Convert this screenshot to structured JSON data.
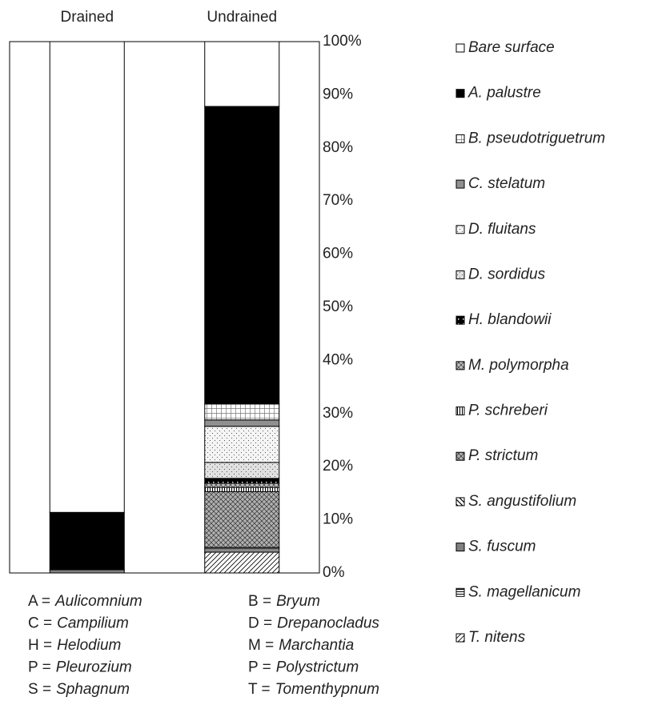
{
  "chart_data": {
    "type": "stacked-bar",
    "categories": [
      "Drained",
      "Undrained"
    ],
    "ylim": [
      0,
      100
    ],
    "yticks": [
      {
        "value": 0,
        "label": "0%"
      },
      {
        "value": 10,
        "label": "10%"
      },
      {
        "value": 20,
        "label": "20%"
      },
      {
        "value": 30,
        "label": "30%"
      },
      {
        "value": 40,
        "label": "40%"
      },
      {
        "value": 50,
        "label": "50%"
      },
      {
        "value": 60,
        "label": "60%"
      },
      {
        "value": 70,
        "label": "70%"
      },
      {
        "value": 80,
        "label": "80%"
      },
      {
        "value": 90,
        "label": "90%"
      },
      {
        "value": 100,
        "label": "100%"
      }
    ],
    "series": [
      {
        "name": "T. nitens",
        "color": "#ffffff",
        "pattern": "diag",
        "values": [
          0,
          3.9
        ]
      },
      {
        "name": "S. magellanicum",
        "color": "#ffffff",
        "pattern": "hlines",
        "values": [
          0,
          0.6
        ]
      },
      {
        "name": "S. fuscum",
        "color": "#808080",
        "pattern": "solid",
        "values": [
          0.6,
          0.3
        ]
      },
      {
        "name": "S. angustifolium",
        "color": "#ffffff",
        "pattern": "backdiag",
        "values": [
          0,
          0
        ]
      },
      {
        "name": "P. strictum",
        "color": "#b0b0b0",
        "pattern": "crosshatch",
        "values": [
          0,
          10.5
        ]
      },
      {
        "name": "P. schreberi",
        "color": "#ffffff",
        "pattern": "vlines",
        "values": [
          0,
          0.8
        ]
      },
      {
        "name": "M. polymorpha",
        "color": "#c0c0c0",
        "pattern": "crosshatch",
        "values": [
          0,
          0.8
        ]
      },
      {
        "name": "H. blandowii",
        "color": "#000000",
        "pattern": "whitedots",
        "values": [
          0,
          0.9
        ]
      },
      {
        "name": "D. sordidus",
        "color": "#e0e0e0",
        "pattern": "dots",
        "values": [
          0,
          3.0
        ]
      },
      {
        "name": "D. fluitans",
        "color": "#f4f4f4",
        "pattern": "dots",
        "values": [
          0,
          6.8
        ]
      },
      {
        "name": "C. stelatum",
        "color": "#909090",
        "pattern": "solid",
        "values": [
          0,
          1.2
        ]
      },
      {
        "name": "B. pseudotriguetrum",
        "color": "#ffffff",
        "pattern": "grid",
        "values": [
          0,
          3.0
        ]
      },
      {
        "name": "A. palustre",
        "color": "#000000",
        "pattern": "solid",
        "values": [
          10.8,
          56.0
        ]
      },
      {
        "name": "Bare surface",
        "color": "#ffffff",
        "pattern": "solid",
        "values": [
          88.6,
          12.2
        ]
      }
    ]
  },
  "abbreviations": [
    {
      "code": "A =",
      "genus": "Aulicomnium"
    },
    {
      "code": "B =",
      "genus": "Bryum"
    },
    {
      "code": "C =",
      "genus": "Campilium"
    },
    {
      "code": "D =",
      "genus": "Drepanocladus"
    },
    {
      "code": "H =",
      "genus": "Helodium"
    },
    {
      "code": "M =",
      "genus": "Marchantia"
    },
    {
      "code": "P =",
      "genus": "Pleurozium"
    },
    {
      "code": "P =",
      "genus": "Polystrictum"
    },
    {
      "code": "S =",
      "genus": "Sphagnum"
    },
    {
      "code": "T =",
      "genus": "Tomenthypnum"
    }
  ]
}
